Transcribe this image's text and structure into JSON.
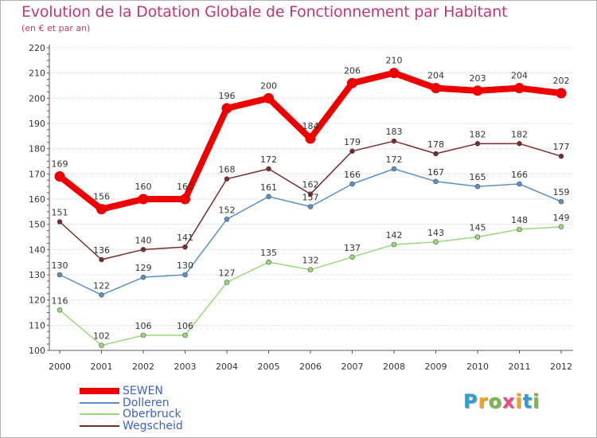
{
  "title": "Evolution de la Dotation Globale de Fonctionnement par Habitant",
  "subtitle": "(en € et par an)",
  "logo": {
    "text": "Proxiti",
    "letters": [
      {
        "ch": "P",
        "color": "#2e9fd6"
      },
      {
        "ch": "r",
        "color": "#f0a21e"
      },
      {
        "ch": "o",
        "color": "#7ab648"
      },
      {
        "ch": "x",
        "color": "#e84c8b"
      },
      {
        "ch": "i",
        "color": "#f0a21e"
      },
      {
        "ch": "t",
        "color": "#2e9fd6"
      },
      {
        "ch": "i",
        "color": "#7ab648"
      }
    ]
  },
  "chart_data": {
    "type": "line",
    "title": "Evolution de la Dotation Globale de Fonctionnement par Habitant",
    "subtitle": "(en € et par an)",
    "xlabel": "",
    "ylabel": "",
    "categories": [
      "2000",
      "2001",
      "2002",
      "2003",
      "2004",
      "2005",
      "2006",
      "2007",
      "2008",
      "2009",
      "2010",
      "2011",
      "2012"
    ],
    "ylim": [
      100,
      220
    ],
    "yticks": [
      100,
      110,
      120,
      130,
      140,
      150,
      160,
      170,
      180,
      190,
      200,
      210,
      220
    ],
    "grid": true,
    "legend_position": "bottom-left",
    "series": [
      {
        "name": "SEWEN",
        "color": "#ee0000",
        "emphasis": true,
        "values": [
          169,
          156,
          160,
          160,
          196,
          200,
          184,
          206,
          210,
          204,
          203,
          204,
          202
        ],
        "labels": [
          "169",
          "156",
          "160",
          "160",
          "196",
          "200",
          "184",
          "206",
          "210",
          "204",
          "203",
          "204",
          "202"
        ]
      },
      {
        "name": "Dolleren",
        "color": "#5b8fc7",
        "emphasis": false,
        "values": [
          130,
          122,
          129,
          130,
          152,
          161,
          157,
          166,
          172,
          167,
          165,
          166,
          159
        ],
        "labels": [
          "130",
          "122",
          "129",
          "130",
          "152",
          "161",
          "157",
          "166",
          "172",
          "167",
          "165",
          "166",
          "159"
        ]
      },
      {
        "name": "Oberbruck",
        "color": "#9ad97a",
        "emphasis": false,
        "values": [
          116,
          102,
          106,
          106,
          127,
          135,
          132,
          137,
          142,
          143,
          145,
          148,
          149
        ],
        "labels": [
          "116",
          "102",
          "106",
          "106",
          "127",
          "135",
          "132",
          "137",
          "142",
          "143",
          "145",
          "148",
          "149"
        ]
      },
      {
        "name": "Wegscheid",
        "color": "#7a2a2a",
        "emphasis": false,
        "values": [
          151,
          136,
          140,
          141,
          168,
          172,
          162,
          179,
          183,
          178,
          182,
          182,
          177
        ],
        "labels": [
          "151",
          "136",
          "140",
          "141",
          "168",
          "172",
          "162",
          "179",
          "183",
          "178",
          "182",
          "182",
          "177"
        ]
      }
    ]
  }
}
